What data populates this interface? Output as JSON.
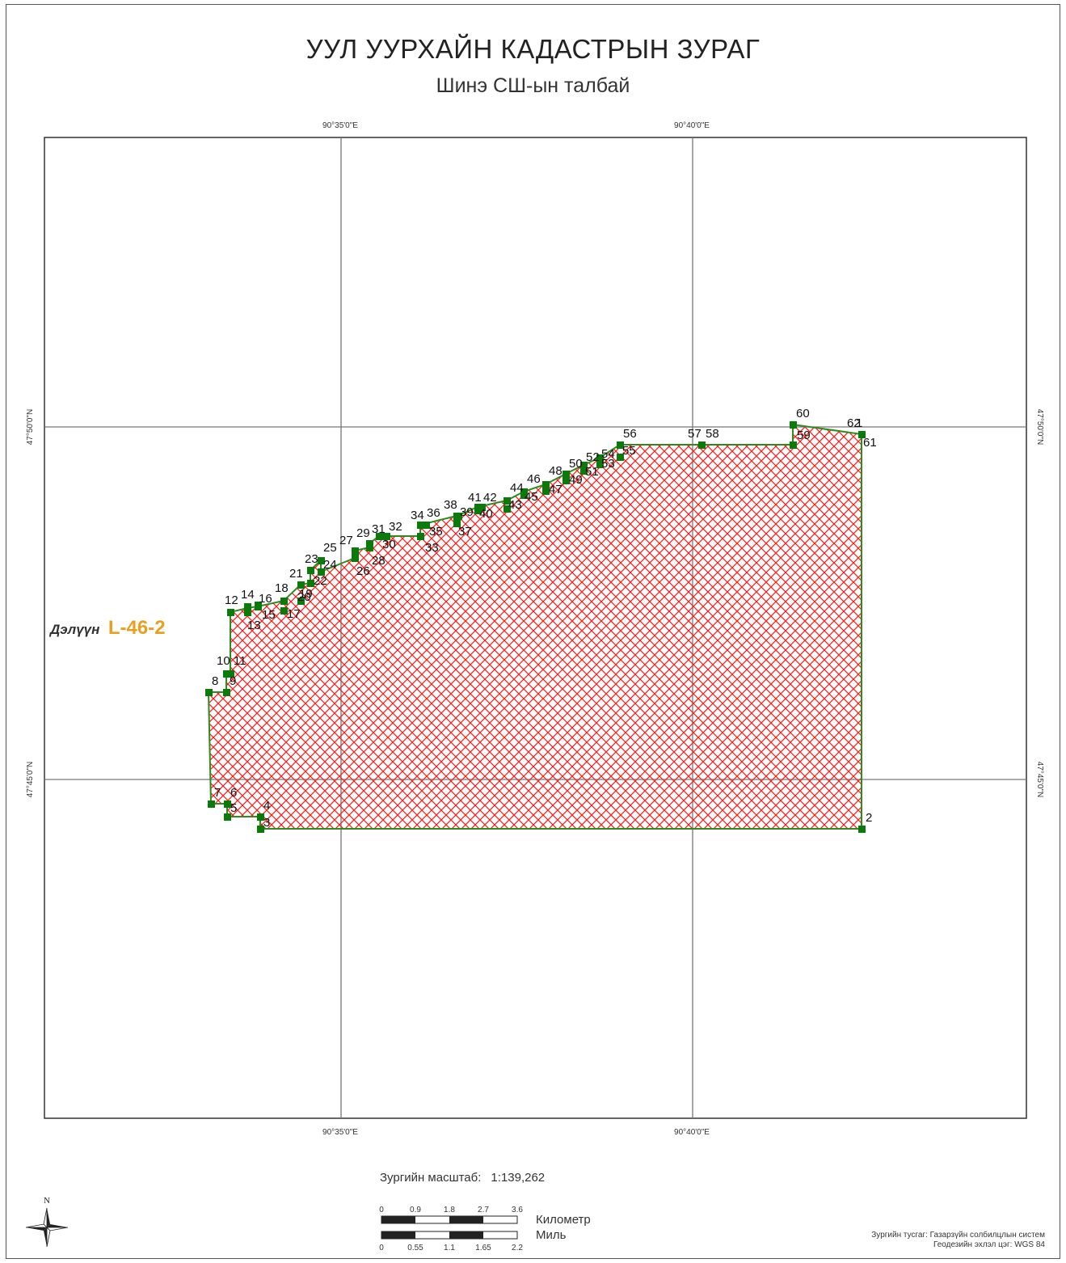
{
  "title": "УУЛ УУРХАЙН КАДАСТРЫН ЗУРАГ",
  "subtitle": "Шинэ СШ-ын талбай",
  "graticule": {
    "lon_top": [
      "90°35'0\"E",
      "90°40'0\"E"
    ],
    "lon_bottom": [
      "90°35'0\"E",
      "90°40'0\"E"
    ],
    "lat_left": [
      "47°50'0\"N",
      "47°45'0\"N"
    ],
    "lat_right": [
      "47°50'0\"N",
      "47°45'0\"N"
    ]
  },
  "sheet_label": {
    "prefix": "Дэлүүн",
    "code": "L-46-2"
  },
  "point_numbers": [
    "1",
    "2",
    "3",
    "4",
    "5",
    "6",
    "7",
    "8",
    "9",
    "10",
    "11",
    "12",
    "13",
    "14",
    "15",
    "16",
    "17",
    "18",
    "19",
    "20",
    "21",
    "22",
    "23",
    "24",
    "25",
    "26",
    "27",
    "28",
    "29",
    "30",
    "31",
    "32",
    "33",
    "34",
    "35",
    "36",
    "37",
    "38",
    "39",
    "40",
    "41",
    "42",
    "43",
    "44",
    "45",
    "46",
    "47",
    "48",
    "49",
    "50",
    "51",
    "52",
    "53",
    "54",
    "55",
    "56",
    "57",
    "58",
    "59",
    "60",
    "61",
    "62"
  ],
  "scale": {
    "label": "Зургийн масштаб:",
    "value": "1:139,262"
  },
  "scalebar_km": {
    "ticks": [
      "0",
      "0.9",
      "1.8",
      "2.7",
      "3.6"
    ],
    "unit": "Километр"
  },
  "scalebar_mi": {
    "ticks": [
      "0",
      "0.55",
      "1.1",
      "1.65",
      "2.2"
    ],
    "unit": "Миль"
  },
  "north_label": "N",
  "credits": {
    "line1": "Зургийн тусгаг: Газарзүйн солбилцлын систем",
    "line2": "Геодезийн эхлэл цэг: WGS 84"
  },
  "colors": {
    "polygon_outline": "#2e8b1f",
    "hatch": "#ee2222",
    "vertex": "#0a7a0a",
    "sheet_label": "#e8a020"
  }
}
